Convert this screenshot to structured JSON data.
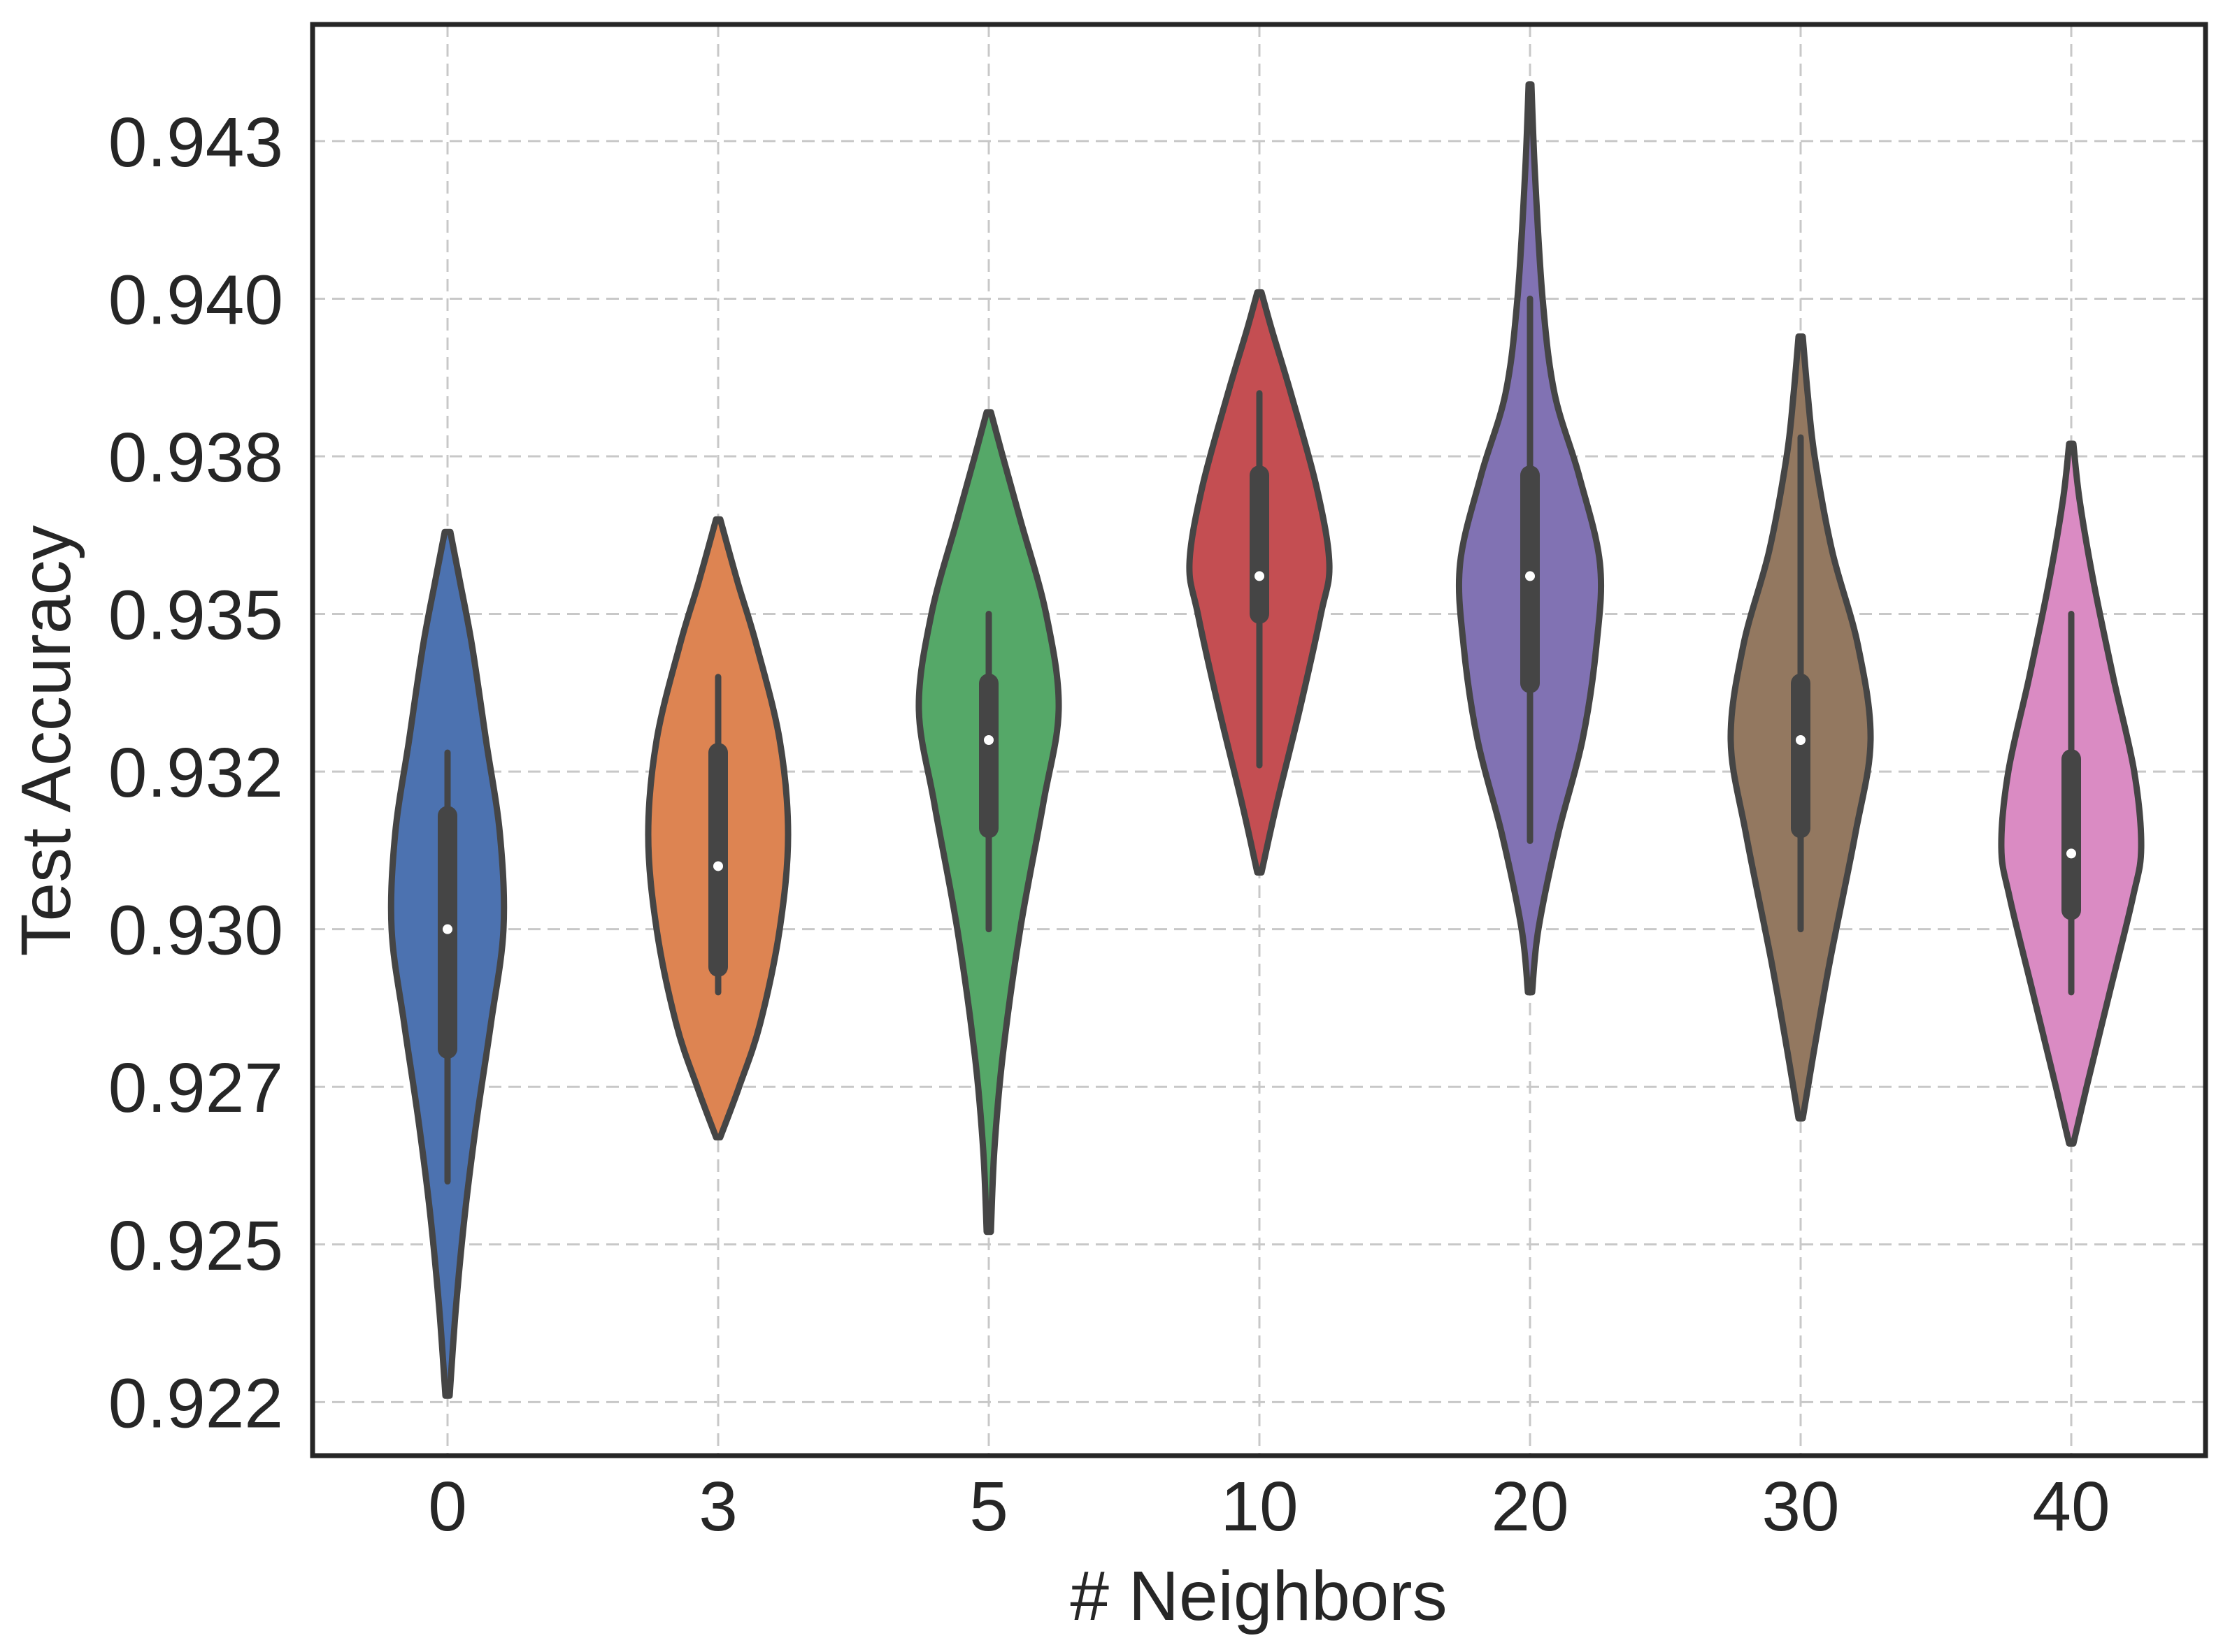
{
  "chart_data": {
    "type": "violin",
    "title": "",
    "xlabel": "# Neighbors",
    "ylabel": "Test Accuracy",
    "categories": [
      "0",
      "3",
      "5",
      "10",
      "20",
      "30",
      "40"
    ],
    "ylim": [
      0.92165,
      0.94435
    ],
    "yticks": [
      0.9225,
      0.925,
      0.9275,
      0.93,
      0.9325,
      0.935,
      0.9375,
      0.94,
      0.9425
    ],
    "ytick_labels": [
      "0.922",
      "0.925",
      "0.927",
      "0.930",
      "0.932",
      "0.935",
      "0.938",
      "0.940",
      "0.943"
    ],
    "grid": true,
    "series": [
      {
        "name": "0",
        "color": "#4c72b0",
        "min": 0.9226,
        "max": 0.9363,
        "q1": 0.9281,
        "median": 0.93,
        "q3": 0.9318,
        "whisker_low": 0.926,
        "whisker_high": 0.9328,
        "density": [
          [
            0.9226,
            0.03
          ],
          [
            0.924,
            0.12
          ],
          [
            0.9255,
            0.25
          ],
          [
            0.927,
            0.42
          ],
          [
            0.9285,
            0.62
          ],
          [
            0.93,
            0.8
          ],
          [
            0.9315,
            0.75
          ],
          [
            0.933,
            0.55
          ],
          [
            0.9345,
            0.35
          ],
          [
            0.9355,
            0.18
          ],
          [
            0.9363,
            0.04
          ]
        ]
      },
      {
        "name": "3",
        "color": "#dd8452",
        "min": 0.9267,
        "max": 0.9365,
        "q1": 0.9294,
        "median": 0.931,
        "q3": 0.9328,
        "whisker_low": 0.929,
        "whisker_high": 0.934,
        "density": [
          [
            0.9267,
            0.03
          ],
          [
            0.9275,
            0.3
          ],
          [
            0.9285,
            0.6
          ],
          [
            0.93,
            0.88
          ],
          [
            0.9315,
            1.0
          ],
          [
            0.933,
            0.88
          ],
          [
            0.9345,
            0.55
          ],
          [
            0.9355,
            0.28
          ],
          [
            0.9365,
            0.03
          ]
        ]
      },
      {
        "name": "5",
        "color": "#55a868",
        "min": 0.9252,
        "max": 0.9382,
        "q1": 0.9316,
        "median": 0.933,
        "q3": 0.9339,
        "whisker_low": 0.93,
        "whisker_high": 0.935,
        "density": [
          [
            0.9252,
            0.03
          ],
          [
            0.9265,
            0.08
          ],
          [
            0.928,
            0.2
          ],
          [
            0.93,
            0.45
          ],
          [
            0.932,
            0.78
          ],
          [
            0.9335,
            1.0
          ],
          [
            0.935,
            0.82
          ],
          [
            0.9365,
            0.45
          ],
          [
            0.9375,
            0.2
          ],
          [
            0.9382,
            0.03
          ]
        ]
      },
      {
        "name": "10",
        "color": "#c44e52",
        "min": 0.9309,
        "max": 0.9401,
        "q1": 0.935,
        "median": 0.9356,
        "q3": 0.9372,
        "whisker_low": 0.9326,
        "whisker_high": 0.9385,
        "density": [
          [
            0.9309,
            0.03
          ],
          [
            0.932,
            0.25
          ],
          [
            0.9335,
            0.58
          ],
          [
            0.935,
            0.88
          ],
          [
            0.9358,
            1.0
          ],
          [
            0.937,
            0.82
          ],
          [
            0.9385,
            0.45
          ],
          [
            0.9395,
            0.18
          ],
          [
            0.9401,
            0.03
          ]
        ]
      },
      {
        "name": "20",
        "color": "#8172b3",
        "min": 0.929,
        "max": 0.9434,
        "q1": 0.9339,
        "median": 0.9356,
        "q3": 0.9372,
        "whisker_low": 0.9314,
        "whisker_high": 0.94,
        "density": [
          [
            0.929,
            0.03
          ],
          [
            0.93,
            0.12
          ],
          [
            0.9315,
            0.4
          ],
          [
            0.933,
            0.75
          ],
          [
            0.9345,
            0.95
          ],
          [
            0.9358,
            1.0
          ],
          [
            0.9372,
            0.7
          ],
          [
            0.9385,
            0.35
          ],
          [
            0.94,
            0.18
          ],
          [
            0.942,
            0.07
          ],
          [
            0.9434,
            0.02
          ]
        ]
      },
      {
        "name": "30",
        "color": "#937860",
        "min": 0.927,
        "max": 0.9394,
        "q1": 0.9316,
        "median": 0.933,
        "q3": 0.9339,
        "whisker_low": 0.93,
        "whisker_high": 0.9378,
        "density": [
          [
            0.927,
            0.03
          ],
          [
            0.928,
            0.18
          ],
          [
            0.9295,
            0.42
          ],
          [
            0.9315,
            0.78
          ],
          [
            0.933,
            1.0
          ],
          [
            0.9345,
            0.82
          ],
          [
            0.936,
            0.45
          ],
          [
            0.9375,
            0.2
          ],
          [
            0.9385,
            0.1
          ],
          [
            0.9394,
            0.03
          ]
        ]
      },
      {
        "name": "40",
        "color": "#da8bc3",
        "min": 0.9266,
        "max": 0.9377,
        "q1": 0.9303,
        "median": 0.9312,
        "q3": 0.9327,
        "whisker_low": 0.929,
        "whisker_high": 0.935,
        "density": [
          [
            0.9266,
            0.03
          ],
          [
            0.9275,
            0.22
          ],
          [
            0.929,
            0.55
          ],
          [
            0.9305,
            0.88
          ],
          [
            0.9313,
            1.0
          ],
          [
            0.9325,
            0.9
          ],
          [
            0.934,
            0.6
          ],
          [
            0.9355,
            0.32
          ],
          [
            0.9368,
            0.12
          ],
          [
            0.9377,
            0.03
          ]
        ]
      }
    ]
  }
}
